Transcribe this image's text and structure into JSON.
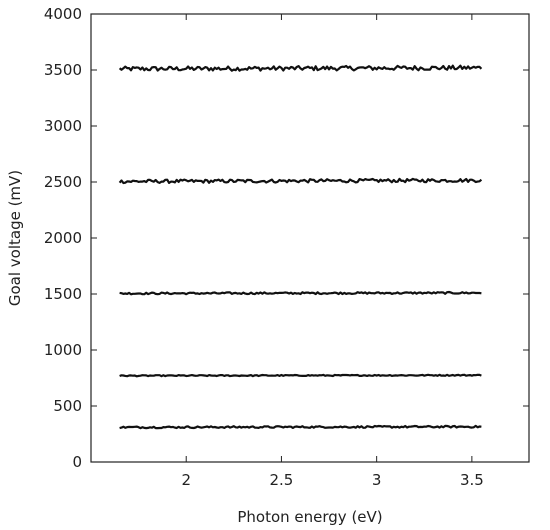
{
  "chart_data": {
    "type": "line",
    "xlabel": "Photon energy (eV)",
    "ylabel": "Goal voltage (mV)",
    "xlim": [
      1.5,
      3.8
    ],
    "ylim": [
      0,
      4000
    ],
    "x_ticks": [
      2,
      2.5,
      3,
      3.5
    ],
    "x_tick_labels": [
      "2",
      "2.5",
      "3",
      "3.5"
    ],
    "y_ticks": [
      0,
      500,
      1000,
      1500,
      2000,
      2500,
      3000,
      3500,
      4000
    ],
    "y_tick_labels": [
      "0",
      "500",
      "1000",
      "1500",
      "2000",
      "2500",
      "3000",
      "3500",
      "4000"
    ],
    "grid": false,
    "legend": "none",
    "line_color": "#111111",
    "series": [
      {
        "x": [
          1.65,
          3.55
        ],
        "values": [
          3510,
          3520
        ],
        "noise": 20
      },
      {
        "x": [
          1.65,
          3.55
        ],
        "values": [
          2505,
          2515
        ],
        "noise": 15
      },
      {
        "x": [
          1.65,
          3.55
        ],
        "values": [
          1505,
          1510
        ],
        "noise": 8
      },
      {
        "x": [
          1.65,
          3.55
        ],
        "values": [
          770,
          775
        ],
        "noise": 5
      },
      {
        "x": [
          1.65,
          3.55
        ],
        "values": [
          310,
          315
        ],
        "noise": 8
      }
    ]
  }
}
